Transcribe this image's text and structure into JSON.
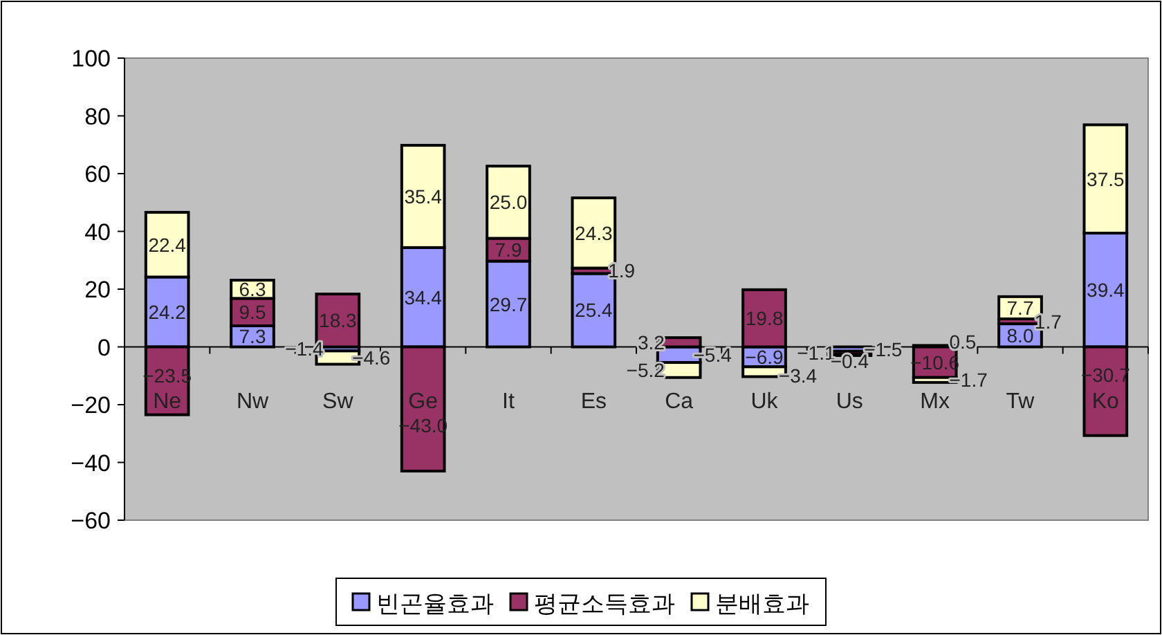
{
  "chart_data": {
    "type": "bar",
    "stacked": true,
    "categories": [
      "Ne",
      "Nw",
      "Sw",
      "Ge",
      "It",
      "Es",
      "Ca",
      "Uk",
      "Us",
      "Mx",
      "Tw",
      "Ko"
    ],
    "series": [
      {
        "name": "빈곤율효과",
        "color": "#9999ff",
        "values": [
          24.2,
          7.3,
          -1.4,
          34.4,
          29.7,
          25.4,
          -5.4,
          -6.9,
          -1.5,
          0.5,
          8.0,
          39.4
        ],
        "value_labels": [
          "24.2",
          "7.3",
          "−1.4",
          "34.4",
          "29.7",
          "25.4",
          "−5.4",
          "−6.9",
          "−1.5",
          "0.5",
          "8.0",
          "39.4"
        ]
      },
      {
        "name": "평균소득효과",
        "color": "#993366",
        "values": [
          -23.5,
          9.5,
          18.3,
          -43.0,
          7.9,
          1.9,
          3.2,
          19.8,
          -1.1,
          -10.6,
          1.7,
          -30.7
        ],
        "value_labels": [
          "−23.5",
          "9.5",
          "18.3",
          "−43.0",
          "7.9",
          "1.9",
          "3.2",
          "19.8",
          "−1.1",
          "−10.6",
          "1.7",
          "−30.7"
        ]
      },
      {
        "name": "분배효과",
        "color": "#ffffcc",
        "values": [
          22.4,
          6.3,
          -4.6,
          35.4,
          25.0,
          24.3,
          -5.2,
          -3.4,
          -0.4,
          -1.7,
          7.7,
          37.5
        ],
        "value_labels": [
          "22.4",
          "6.3",
          "−4.6",
          "35.4",
          "25.0",
          "24.3",
          "−5.2",
          "−3.4",
          "−0.4",
          "−1.7",
          "7.7",
          "37.5"
        ]
      }
    ],
    "ylim": [
      -60,
      100
    ],
    "yticks": [
      {
        "value": -60,
        "label": "−60"
      },
      {
        "value": -40,
        "label": "−40"
      },
      {
        "value": -20,
        "label": "−20"
      },
      0,
      20,
      40,
      60,
      80,
      100
    ],
    "legend": "bottom"
  }
}
